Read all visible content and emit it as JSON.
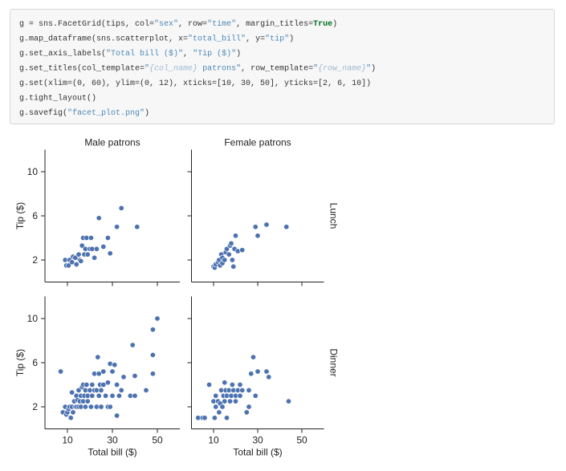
{
  "code": {
    "lines": [
      [
        {
          "text": "g = sns.FacetGrid(tips, col=",
          "color": "#333333"
        },
        {
          "text": "\"sex\"",
          "color": "#4d88b8"
        },
        {
          "text": ", row=",
          "color": "#333333"
        },
        {
          "text": "\"time\"",
          "color": "#4d88b8"
        },
        {
          "text": ", margin_titles=",
          "color": "#333333"
        },
        {
          "text": "True",
          "color": "#007020",
          "font_weight": "bold"
        },
        {
          "text": ")",
          "color": "#333333"
        }
      ],
      [
        {
          "text": "g.map_dataframe(sns.scatterplot, x=",
          "color": "#333333"
        },
        {
          "text": "\"total_bill\"",
          "color": "#4d88b8"
        },
        {
          "text": ", y=",
          "color": "#333333"
        },
        {
          "text": "\"tip\"",
          "color": "#4d88b8"
        },
        {
          "text": ")",
          "color": "#333333"
        }
      ],
      [
        {
          "text": "g.set_axis_labels(",
          "color": "#333333"
        },
        {
          "text": "\"Total bill ($)\"",
          "color": "#4d88b8"
        },
        {
          "text": ", ",
          "color": "#333333"
        },
        {
          "text": "\"Tip ($)\"",
          "color": "#4d88b8"
        },
        {
          "text": ")",
          "color": "#333333"
        }
      ],
      [
        {
          "text": "g.set_titles(col_template=",
          "color": "#333333"
        },
        {
          "text": "\"",
          "color": "#4d88b8"
        },
        {
          "text": "{col_name}",
          "color": "#9db8d2",
          "font_style": "italic"
        },
        {
          "text": " patrons\"",
          "color": "#4d88b8"
        },
        {
          "text": ", row_template=",
          "color": "#333333"
        },
        {
          "text": "\"",
          "color": "#4d88b8"
        },
        {
          "text": "{row_name}",
          "color": "#9db8d2",
          "font_style": "italic"
        },
        {
          "text": "\"",
          "color": "#4d88b8"
        },
        {
          "text": ")",
          "color": "#333333"
        }
      ],
      [
        {
          "text": "g.set(xlim=(0, 60), ylim=(0, 12), xticks=[10, 30, 50], yticks=[2, 6, 10])",
          "color": "#333333"
        }
      ],
      [
        {
          "text": "g.tight_layout()",
          "color": "#333333"
        }
      ],
      [
        {
          "text": "g.savefig(",
          "color": "#333333"
        },
        {
          "text": "\"facet_plot.png\"",
          "color": "#4d88b8"
        },
        {
          "text": ")",
          "color": "#333333"
        }
      ]
    ]
  },
  "chart_data": [
    {
      "type": "scatter",
      "title": "Male patrons",
      "ylabel": "Tip ($)",
      "color": "#4c72b0",
      "x": [
        9,
        9.5,
        10.5,
        11,
        12,
        12.5,
        13.5,
        14,
        15,
        15.5,
        16,
        16.5,
        17,
        17.5,
        18,
        18.5,
        19,
        20,
        20.5,
        21,
        22,
        23,
        24,
        26,
        28,
        29,
        32,
        34,
        41
      ],
      "values": [
        2,
        1.5,
        1.5,
        2,
        1.8,
        2.3,
        2.2,
        1.6,
        2.5,
        2,
        1.9,
        3.3,
        4,
        2.5,
        3,
        4,
        2.5,
        3,
        4,
        3,
        2.2,
        3,
        5.8,
        3.2,
        4,
        2.6,
        5,
        6.7,
        5
      ],
      "xlim": [
        0,
        60
      ],
      "ylim": [
        0,
        12
      ],
      "xticks": [
        10,
        30,
        50
      ],
      "yticks": [
        2,
        6,
        10
      ]
    },
    {
      "type": "scatter",
      "title": "Female patrons",
      "row_title": "Lunch",
      "color": "#4c72b0",
      "x": [
        10,
        10.5,
        11,
        12,
        12.5,
        13,
        13.5,
        14,
        14,
        15,
        15.5,
        16,
        17,
        17.5,
        18,
        18.5,
        19,
        19.5,
        20,
        21,
        23,
        29,
        30,
        34,
        43
      ],
      "values": [
        1.4,
        1.3,
        1.6,
        1.8,
        2,
        1.5,
        2.5,
        2.2,
        1.7,
        2,
        2.7,
        3,
        2.5,
        3.3,
        3.5,
        2,
        1.4,
        3,
        4.2,
        2.8,
        2.9,
        5,
        4.2,
        5.2,
        5
      ],
      "xlim": [
        0,
        60
      ],
      "ylim": [
        0,
        12
      ],
      "xticks": [
        10,
        30,
        50
      ],
      "yticks": [
        2,
        6,
        10
      ]
    },
    {
      "type": "scatter",
      "ylabel": "Tip ($)",
      "xlabel": "Total bill ($)",
      "color": "#4c72b0",
      "x": [
        7,
        8,
        9,
        9.5,
        10,
        10.5,
        11,
        11.5,
        12,
        12,
        12.5,
        13,
        13.5,
        14,
        14,
        14.5,
        15,
        15,
        15.5,
        16,
        16,
        16.5,
        17,
        17,
        17.5,
        18,
        18,
        18.5,
        19,
        19,
        20,
        20.5,
        21,
        21,
        22,
        22,
        23,
        23,
        23.5,
        24,
        24,
        24.5,
        25,
        25,
        26,
        26,
        27,
        28,
        28,
        29,
        29,
        30,
        30,
        31,
        32,
        32,
        33,
        34,
        35,
        38,
        39,
        40,
        40,
        45,
        48,
        48,
        48,
        50
      ],
      "values": [
        5.2,
        1.5,
        2,
        1.3,
        1.5,
        1.8,
        2,
        1,
        2,
        3.3,
        1.5,
        2.5,
        2,
        2,
        3,
        2.6,
        2,
        3.5,
        2.5,
        3,
        2,
        3.8,
        2.5,
        4,
        3,
        3.5,
        2,
        4,
        3,
        2.5,
        3.5,
        2,
        4,
        3,
        5,
        3.5,
        2,
        3.5,
        6.5,
        3,
        5,
        4,
        3.5,
        2,
        5.2,
        4,
        3,
        2,
        4.2,
        5.9,
        2,
        5.2,
        3,
        5.8,
        1.2,
        4,
        3,
        3.5,
        4.7,
        3,
        7.6,
        3,
        4.8,
        3.5,
        5,
        6.7,
        9,
        10
      ],
      "xlim": [
        0,
        60
      ],
      "ylim": [
        0,
        12
      ],
      "xticks": [
        10,
        30,
        50
      ],
      "yticks": [
        2,
        6,
        10
      ]
    },
    {
      "type": "scatter",
      "row_title": "Dinner",
      "xlabel": "Total bill ($)",
      "color": "#4c72b0",
      "x": [
        3,
        5,
        6,
        8,
        10,
        10.5,
        11,
        11,
        12,
        12.5,
        13,
        13.5,
        14,
        14.5,
        15,
        15,
        15.5,
        16,
        16,
        17,
        17.5,
        18,
        18.5,
        19,
        20,
        20,
        21,
        22,
        22,
        23,
        25,
        26,
        26,
        27,
        28,
        29,
        30,
        34,
        35,
        44
      ],
      "values": [
        1,
        1,
        1,
        4,
        2.5,
        1,
        2,
        3,
        2.5,
        1.5,
        2.3,
        3.5,
        2,
        3,
        4.2,
        2.5,
        3.5,
        1,
        3,
        3.5,
        2.5,
        3,
        4,
        3.5,
        2.5,
        3,
        3.5,
        4,
        3,
        3.5,
        1.5,
        2,
        3.5,
        5,
        6.5,
        3,
        5.2,
        5.2,
        4.7,
        2.5
      ],
      "xlim": [
        0,
        60
      ],
      "ylim": [
        0,
        12
      ],
      "xticks": [
        10,
        30,
        50
      ],
      "yticks": [
        2,
        6,
        10
      ]
    }
  ]
}
